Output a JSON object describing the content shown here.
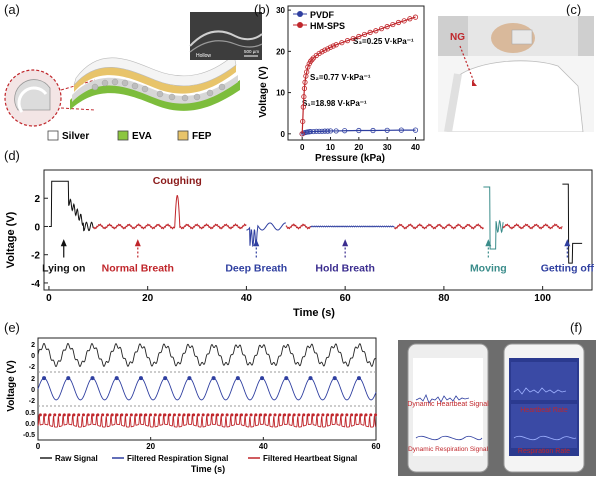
{
  "panels": {
    "a": {
      "label": "(a)",
      "sem": {
        "scale": "500 µm",
        "caption": "Hollow"
      },
      "legend": [
        {
          "name": "Silver",
          "color": "#ffffff"
        },
        {
          "name": "EVA",
          "color": "#8cc63f"
        },
        {
          "name": "FEP",
          "color": "#e8c46a"
        }
      ]
    },
    "b": {
      "label": "(b)",
      "chart_data": {
        "type": "line",
        "xlabel": "Pressure (kPa)",
        "ylabel": "Voltage (V)",
        "xlim": [
          -5,
          43
        ],
        "ylim": [
          -1.5,
          31
        ],
        "xticks": [
          0,
          10,
          20,
          30,
          40
        ],
        "yticks": [
          0,
          10,
          20,
          30
        ],
        "legend_position": "top-left",
        "series": [
          {
            "name": "PVDF",
            "color": "#2f3fa0",
            "x": [
              0,
              0.5,
              1,
              1.5,
              2,
              2.5,
              3,
              4,
              5,
              6,
              7,
              8,
              9,
              10,
              12,
              15,
              20,
              25,
              30,
              35,
              40
            ],
            "y": [
              0,
              0.2,
              0.3,
              0.4,
              0.45,
              0.5,
              0.55,
              0.55,
              0.6,
              0.6,
              0.6,
              0.65,
              0.65,
              0.7,
              0.7,
              0.75,
              0.8,
              0.8,
              0.85,
              0.9,
              0.9
            ]
          },
          {
            "name": "HM-SPS",
            "color": "#c0262b",
            "x": [
              0,
              0.2,
              0.4,
              0.6,
              0.8,
              1,
              1.3,
              1.6,
              2,
              2.5,
              3,
              3.5,
              4,
              5,
              6,
              7,
              8,
              9,
              10,
              11,
              12,
              14,
              16,
              18,
              20,
              22,
              24,
              26,
              28,
              30,
              32,
              34,
              36,
              38,
              40
            ],
            "y": [
              0,
              3,
              6.5,
              9,
              11,
              12.5,
              14,
              15,
              16.2,
              17,
              17.6,
              18,
              18.4,
              19,
              19.5,
              19.9,
              20.3,
              20.6,
              21,
              21.3,
              21.6,
              22.1,
              22.6,
              23.1,
              23.6,
              24.1,
              24.6,
              25,
              25.5,
              26,
              26.5,
              27,
              27.4,
              27.9,
              28.3
            ]
          }
        ],
        "annotations": [
          {
            "text": "S₃=0.25 V·kPa⁻¹"
          },
          {
            "text": "S₂=0.77 V·kPa⁻¹"
          },
          {
            "text": "S₁=18.98 V·kPa⁻¹"
          }
        ]
      }
    },
    "c": {
      "label": "(c)",
      "tag": "NG"
    },
    "d": {
      "label": "(d)",
      "chart_data": {
        "type": "line",
        "xlabel": "Time (s)",
        "ylabel": "Voltage (V)",
        "xlim": [
          -1,
          110
        ],
        "ylim": [
          -4.5,
          4
        ],
        "xticks": [
          0,
          20,
          40,
          60,
          80,
          100
        ],
        "yticks": [
          -4,
          -2,
          0,
          2
        ],
        "segments": [
          {
            "color": "#111111",
            "range": [
              0,
              9
            ]
          },
          {
            "color": "#c0262b",
            "range": [
              9,
              40
            ]
          },
          {
            "color": "#2f3fa0",
            "range": [
              40,
              48
            ]
          },
          {
            "color": "#c0262b",
            "range": [
              48,
              53
            ]
          },
          {
            "color": "#2f3fa0",
            "range": [
              53,
              70
            ]
          },
          {
            "color": "#c0262b",
            "range": [
              70,
              88
            ]
          },
          {
            "color": "#3a8c8a",
            "range": [
              88,
              92
            ]
          },
          {
            "color": "#c0262b",
            "range": [
              92,
              104
            ]
          },
          {
            "color": "#111111",
            "range": [
              104,
              108
            ]
          }
        ],
        "events": [
          {
            "text": "Lying on",
            "x": 3,
            "color": "#111111",
            "arrow": "solid"
          },
          {
            "text": "Normal Breath",
            "x": 18,
            "color": "#c0262b",
            "arrow": "dashed"
          },
          {
            "text": "Coughing",
            "x": 26,
            "color": "#8b1a1a",
            "arrow": "none"
          },
          {
            "text": "Deep Breath",
            "x": 42,
            "color": "#2f3fa0",
            "arrow": "dashed"
          },
          {
            "text": "Hold Breath",
            "x": 60,
            "color": "#3b2d8f",
            "arrow": "dashed"
          },
          {
            "text": "Moving",
            "x": 89,
            "color": "#3a8c8a",
            "arrow": "dashed"
          },
          {
            "text": "Getting off",
            "x": 105,
            "color": "#2f3fa0",
            "arrow": "dashed"
          }
        ]
      }
    },
    "e": {
      "label": "(e)",
      "chart_data": {
        "type": "line",
        "xlabel": "Time (s)",
        "ylabel": "Voltage (V)",
        "xlim": [
          0,
          60
        ],
        "xticks": [
          0,
          20,
          40,
          60
        ],
        "panels": [
          {
            "yticks": [
              "2",
              "0",
              "-2"
            ],
            "color": "#222222",
            "name": "Raw Signal"
          },
          {
            "yticks": [
              "2",
              "0",
              "-2"
            ],
            "color": "#2f3fa0",
            "name": "Filtered Respiration Signal"
          },
          {
            "yticks": [
              "0.5",
              "0.0",
              "-0.5"
            ],
            "color": "#c0262b",
            "name": "Filtered Heartbeat Signal"
          }
        ],
        "respiration_period_s": 4.3,
        "heartbeat_period_s": 0.85
      }
    },
    "f": {
      "label": "(f)",
      "phone1": [
        "Dynamic Heartbeat Signal",
        "Dynamic Respiration Signal"
      ],
      "phone2": [
        "Heartbeat Rate",
        "Respiration Rate"
      ]
    }
  }
}
